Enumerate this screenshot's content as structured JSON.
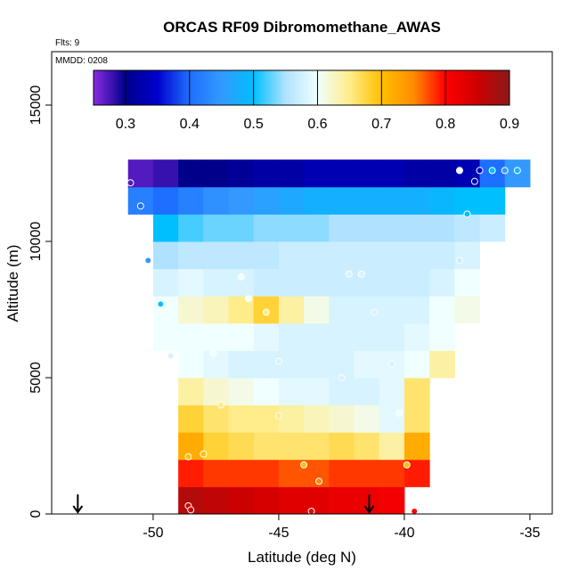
{
  "chart_data": {
    "type": "heatmap",
    "title": "ORCAS RF09 Dibromomethane_AWAS",
    "annotations": [
      "Flts: 9",
      "MMDD: 0208"
    ],
    "xlabel": "Latitude (deg N)",
    "ylabel": "Altitude (m)",
    "xlim": [
      -54.04,
      -34.11
    ],
    "ylim": [
      0,
      16960
    ],
    "xticks": [
      -50,
      -45,
      -40,
      -35
    ],
    "yticks": [
      0,
      5000,
      10000,
      15000
    ],
    "lat": [
      -50.5,
      -49.5,
      -48.5,
      -47.5,
      -46.5,
      -45.5,
      -44.5,
      -43.5,
      -42.5,
      -41.5,
      -40.5,
      -39.5,
      -38.5,
      -37.5,
      -36.5,
      -35.5
    ],
    "alt": [
      500,
      1500,
      2500,
      3500,
      4500,
      5500,
      6500,
      7500,
      8500,
      9500,
      10500,
      11500,
      12500
    ],
    "values": [
      [
        null,
        null,
        0.87,
        0.86,
        0.85,
        0.84,
        0.83,
        0.83,
        0.82,
        0.82,
        0.81,
        null,
        null,
        null,
        null,
        null
      ],
      [
        null,
        null,
        0.79,
        0.78,
        0.78,
        0.78,
        0.77,
        0.77,
        0.78,
        0.78,
        0.78,
        0.79,
        null,
        null,
        null,
        null
      ],
      [
        null,
        null,
        0.72,
        0.68,
        0.67,
        0.66,
        0.66,
        0.66,
        0.67,
        0.66,
        0.64,
        0.72,
        null,
        null,
        null,
        null
      ],
      [
        null,
        null,
        0.68,
        0.66,
        0.65,
        0.65,
        0.64,
        0.63,
        0.62,
        0.61,
        0.59,
        0.66,
        null,
        null,
        null,
        null
      ],
      [
        null,
        null,
        0.64,
        0.62,
        0.61,
        0.6,
        0.59,
        0.59,
        0.58,
        0.58,
        0.59,
        0.66,
        null,
        null,
        null,
        null
      ],
      [
        null,
        null,
        0.6,
        0.59,
        0.58,
        0.58,
        0.58,
        0.58,
        0.58,
        0.59,
        0.59,
        0.6,
        0.64,
        null,
        null,
        null
      ],
      [
        null,
        0.6,
        0.6,
        0.6,
        0.6,
        0.59,
        0.58,
        0.58,
        0.58,
        0.58,
        0.58,
        0.59,
        0.6,
        null,
        null,
        null
      ],
      [
        null,
        0.6,
        0.62,
        0.63,
        0.65,
        0.68,
        0.64,
        0.61,
        0.58,
        0.58,
        0.58,
        0.58,
        0.6,
        0.61,
        null,
        null
      ],
      [
        null,
        0.58,
        0.59,
        0.58,
        0.58,
        0.57,
        0.57,
        0.57,
        0.57,
        0.57,
        0.57,
        0.57,
        0.58,
        0.6,
        null,
        null
      ],
      [
        null,
        0.55,
        0.56,
        0.56,
        0.56,
        0.56,
        0.57,
        0.57,
        0.57,
        0.57,
        0.57,
        0.57,
        0.57,
        0.58,
        null,
        null
      ],
      [
        null,
        0.5,
        0.52,
        0.53,
        0.53,
        0.54,
        0.54,
        0.54,
        0.55,
        0.55,
        0.55,
        0.55,
        0.55,
        0.56,
        0.57,
        null
      ],
      [
        0.42,
        0.4,
        0.42,
        0.44,
        0.45,
        0.46,
        0.47,
        0.48,
        0.48,
        0.48,
        0.48,
        0.48,
        0.49,
        0.5,
        0.5,
        null
      ],
      [
        0.27,
        0.28,
        0.3,
        0.3,
        0.31,
        0.32,
        0.32,
        0.33,
        0.33,
        0.33,
        0.33,
        0.32,
        0.32,
        0.33,
        0.4,
        0.45
      ]
    ],
    "colorbar": {
      "lim": [
        0.25,
        0.9
      ],
      "ticks": [
        0.3,
        0.4,
        0.5,
        0.6,
        0.7,
        0.8,
        0.9
      ],
      "colors": [
        "#8a2be2",
        "#00008b",
        "#0000cd",
        "#1e6fff",
        "#3399ff",
        "#00bfff",
        "#b0e2ff",
        "#f0ffff",
        "#ffec8b",
        "#ffc000",
        "#ff8c00",
        "#ff0000",
        "#cd0000",
        "#8b1a1a"
      ]
    },
    "samples": {
      "lat": [
        -50.9,
        -50.5,
        -50.2,
        -49.7,
        -49.3,
        -48.6,
        -48.6,
        -48.5,
        -48.0,
        -47.6,
        -47.3,
        -46.5,
        -46.2,
        -45.5,
        -45.0,
        -45.0,
        -44.0,
        -43.7,
        -43.4,
        -42.5,
        -42.2,
        -41.7,
        -41.2,
        -40.5,
        -40.2,
        -39.9,
        -39.6,
        -37.8,
        -37.5,
        -37.2,
        -37.0,
        -37.8,
        -36.5,
        -36.0,
        -35.5
      ],
      "alt": [
        12150,
        11300,
        9300,
        7700,
        5800,
        2100,
        300,
        150,
        2200,
        5900,
        4000,
        8700,
        7900,
        7400,
        3600,
        5600,
        1800,
        100,
        1200,
        5000,
        8800,
        8800,
        7400,
        5500,
        3700,
        1800,
        100,
        9300,
        11000,
        12200,
        12600,
        12600,
        12600,
        12600,
        12600
      ],
      "values": [
        0.27,
        0.4,
        0.45,
        0.5,
        0.58,
        0.7,
        0.85,
        0.85,
        0.7,
        0.6,
        0.65,
        0.6,
        0.6,
        0.65,
        0.65,
        0.58,
        0.7,
        0.82,
        0.75,
        0.58,
        0.58,
        0.58,
        0.58,
        0.58,
        0.6,
        0.7,
        0.8,
        0.57,
        0.5,
        0.33,
        0.35,
        0.6,
        0.5,
        0.45,
        0.5
      ]
    },
    "arrows_lat": [
      -53,
      -41.4
    ]
  }
}
